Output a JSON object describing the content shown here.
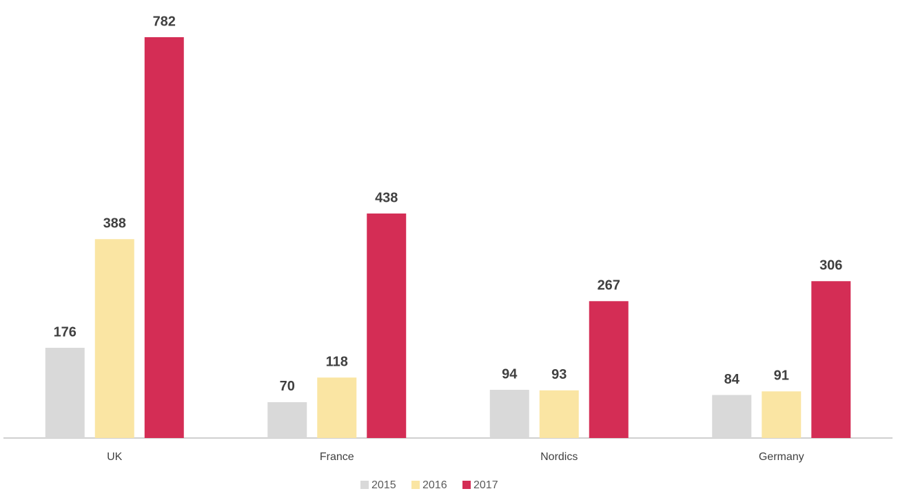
{
  "chart_data": {
    "type": "bar",
    "categories": [
      "UK",
      "France",
      "Nordics",
      "Germany"
    ],
    "series": [
      {
        "name": "2015",
        "color": "#d9d9d9",
        "values": [
          176,
          70,
          94,
          84
        ]
      },
      {
        "name": "2016",
        "color": "#fae5a3",
        "values": [
          388,
          118,
          93,
          91
        ]
      },
      {
        "name": "2017",
        "color": "#d42d55",
        "values": [
          782,
          438,
          267,
          306
        ]
      }
    ]
  }
}
